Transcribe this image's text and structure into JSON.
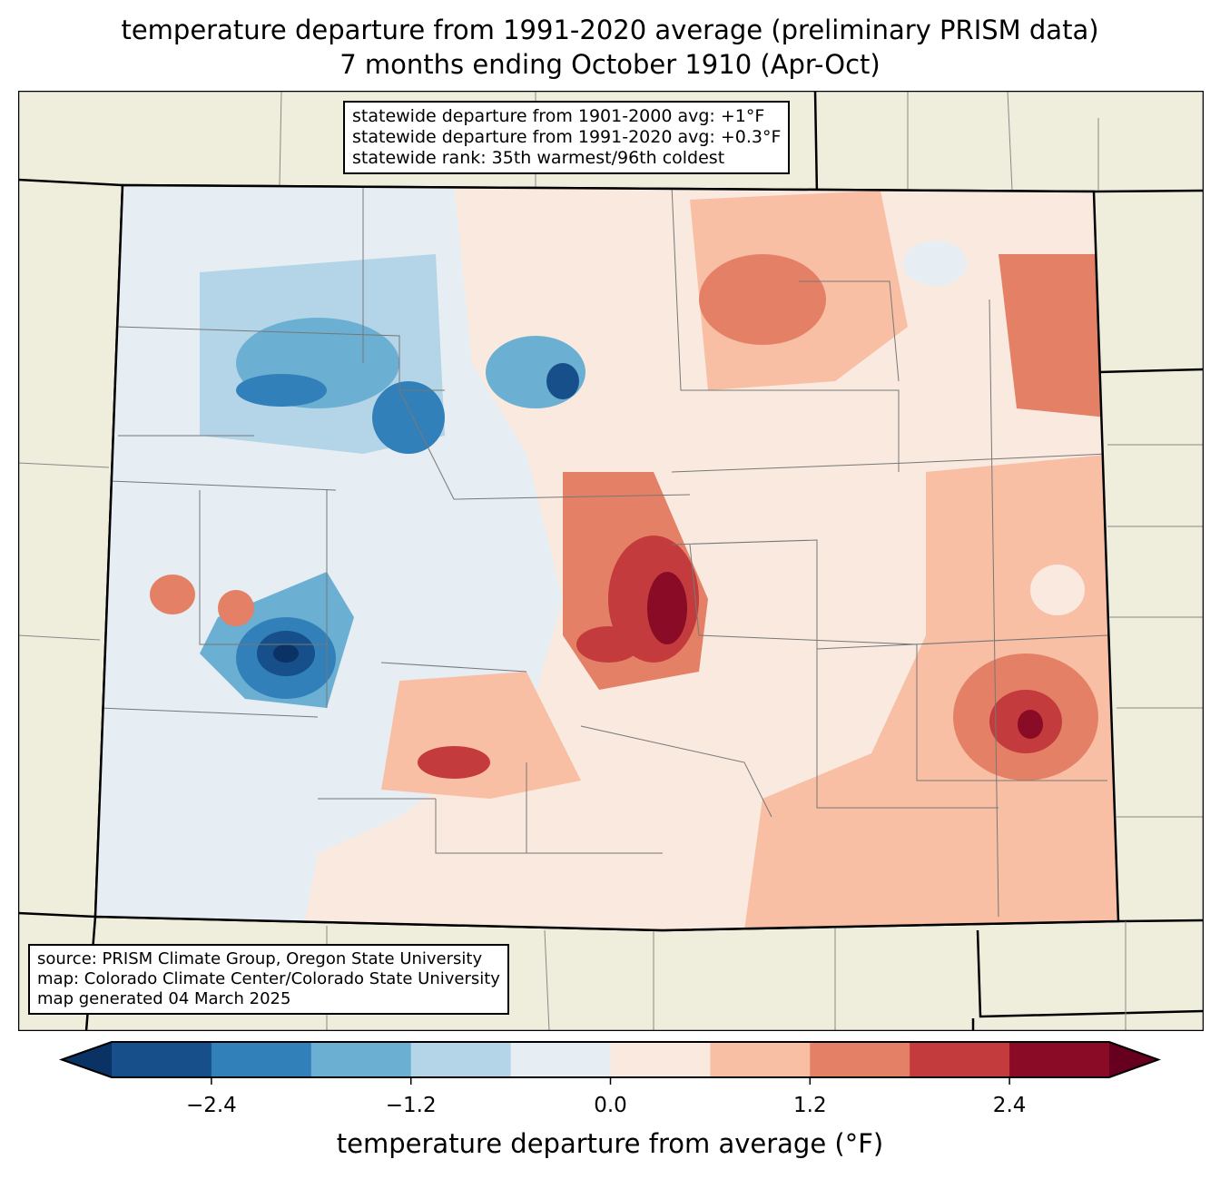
{
  "title": {
    "line1": "temperature departure from 1991-2020 average (preliminary PRISM data)",
    "line2": "7 months ending October 1910 (Apr-Oct)"
  },
  "stats_box": {
    "line1": "statewide departure from 1901-2000 avg: +1°F",
    "line2": "statewide departure from 1991-2020 avg: +0.3°F",
    "line3": "statewide rank: 35th warmest/96th coldest"
  },
  "source_box": {
    "line1": "source: PRISM Climate Group, Oregon State University",
    "line2": "map: Colorado Climate Center/Colorado State University",
    "line3": "map generated 04 March 2025"
  },
  "colorbar": {
    "label": "temperature departure from average (°F)",
    "ticks": [
      "−2.4",
      "−1.2",
      "0.0",
      "1.2",
      "2.4"
    ],
    "tick_values": [
      -2.4,
      -1.2,
      0.0,
      1.2,
      2.4
    ],
    "levels": [
      -3.0,
      -2.4,
      -1.8,
      -1.2,
      -0.6,
      0.0,
      0.6,
      1.2,
      1.8,
      2.4,
      3.0
    ],
    "under_color": "#0a3264",
    "over_color": "#67001f",
    "colors": [
      "#164f8a",
      "#3280ba",
      "#6bafd2",
      "#b3d5e7",
      "#e6edf3",
      "#f9e9df",
      "#f8bfa4",
      "#e48066",
      "#c33b3c",
      "#8a0b25"
    ]
  },
  "map": {
    "land_color": "#efeedc",
    "region": "Colorado"
  }
}
